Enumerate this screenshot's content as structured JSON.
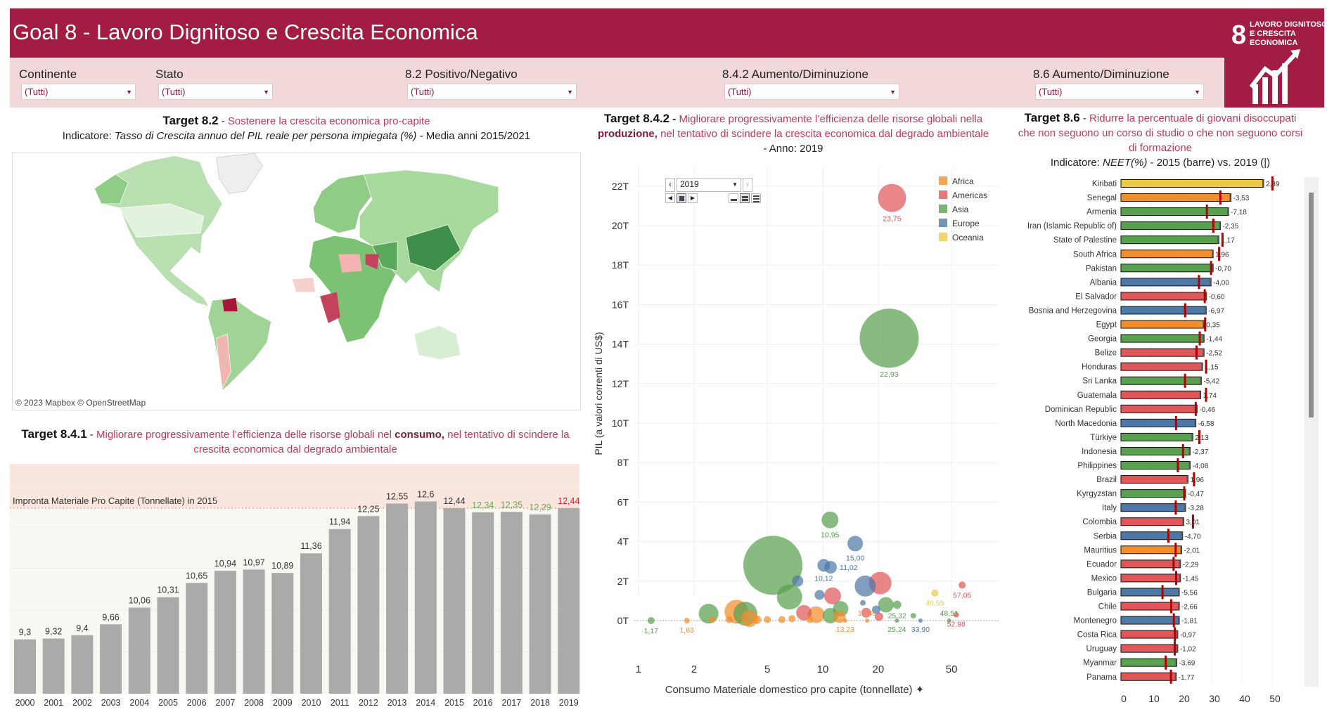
{
  "header": {
    "title": "Goal 8 - Lavoro Dignitoso e Crescita Economica",
    "logo": {
      "number": "8",
      "text": [
        "LAVORO DIGNITOSO",
        "E CRESCITA",
        "ECONOMICA"
      ]
    }
  },
  "filters": [
    {
      "label": "Continente",
      "value": "(Tutti)"
    },
    {
      "label": "Stato",
      "value": "(Tutti)"
    },
    {
      "label": "8.2 Positivo/Negativo",
      "value": "(Tutti)"
    },
    {
      "label": "8.4.2 Aumento/Diminuzione",
      "value": "(Tutti)"
    },
    {
      "label": "8.6 Aumento/Diminuzione",
      "value": "(Tutti)"
    }
  ],
  "colors": {
    "header": "#a21c44",
    "filter_band": "#f3d8da",
    "Africa": "#f28e2b",
    "Americas": "#e15759",
    "Asia": "#59a14f",
    "Europe": "#4e79a7",
    "Oceania": "#edc948",
    "marker": "#b00000",
    "bar_gray": "#aaaaaa"
  },
  "target82": {
    "key": "Target 8.2",
    "desc": "Sostenere la crescita economica pro-capite",
    "ind_label": "Indicatore:",
    "ind_name": "Tasso di Crescita annuo del PIL reale per persona impiegata (%)",
    "ind_suffix": "- Media anni 2015/2021",
    "attribution": "© 2023 Mapbox © OpenStreetMap"
  },
  "target841": {
    "key": "Target 8.4.1",
    "desc1": "Migliorare progressivamente l’efficienza delle risorse globali nel ",
    "bold": "consumo,",
    "desc2": " nel tentativo di scindere la crescita economica dal degrado ambientale"
  },
  "target842": {
    "key": "Target 8.4.2",
    "desc1": "Migliorare progressivamente l’efficienza delle risorse globali nella ",
    "bold": "produzione,",
    "desc2": " nel tentativo di scindere la crescita economica dal degrado ambientale",
    "suffix": " - Anno: 2019",
    "player_value": "2019"
  },
  "target86": {
    "key": "Target 8.6",
    "desc": "Ridurre la percentuale di giovani disoccupati che non seguono un corso di studio o che non seguono corsi di formazione",
    "ind_label": "Indicatore:",
    "ind_name": "NEET(%)",
    "ind_suffix": "- 2015 (barre) vs. 2019 (|)"
  },
  "chart_data": [
    {
      "type": "bar",
      "title": "",
      "ref_label": "Impronta Materiale Pro Capite (Tonnellate) in 2015",
      "ref_value": 12.44,
      "ylim": [
        8,
        13.5
      ],
      "categories": [
        "2000",
        "2001",
        "2002",
        "2003",
        "2004",
        "2005",
        "2006",
        "2007",
        "2008",
        "2009",
        "2010",
        "2011",
        "2012",
        "2013",
        "2014",
        "2015",
        "2016",
        "2017",
        "2018",
        "2019"
      ],
      "values": [
        9.3,
        9.32,
        9.4,
        9.66,
        10.06,
        10.31,
        10.65,
        10.94,
        10.97,
        10.89,
        11.36,
        11.94,
        12.25,
        12.55,
        12.6,
        12.44,
        12.34,
        12.35,
        12.29,
        12.44
      ],
      "labels": [
        "9,3",
        "9,32",
        "9,4",
        "9,66",
        "10,06",
        "10,31",
        "10,65",
        "10,94",
        "10,97",
        "10,89",
        "11,36",
        "11,94",
        "12,25",
        "12,55",
        "12,6",
        "12,44",
        "12,34",
        "12,35",
        "12,29",
        "12,44"
      ],
      "label_colors": [
        "#333",
        "#333",
        "#333",
        "#333",
        "#333",
        "#333",
        "#333",
        "#333",
        "#333",
        "#333",
        "#333",
        "#333",
        "#333",
        "#333",
        "#333",
        "#333",
        "#6aa84f",
        "#6aa84f",
        "#6aa84f",
        "#d62728"
      ]
    },
    {
      "type": "scatter",
      "xlabel": "Consumo Materiale domestico pro capite (tonnellate)",
      "ylabel": "PIL (a valori correnti di US$)",
      "xscale": "log",
      "xlim": [
        1,
        70
      ],
      "ylim": [
        -2.5,
        23.5
      ],
      "xticks": [
        "1",
        "2",
        "5",
        "10",
        "20",
        "50"
      ],
      "xtick_values": [
        1,
        2,
        5,
        10,
        20,
        50
      ],
      "yticks": [
        "0T",
        "2T",
        "4T",
        "6T",
        "8T",
        "10T",
        "12T",
        "14T",
        "16T",
        "18T",
        "20T",
        "22T"
      ],
      "ytick_values": [
        0,
        2,
        4,
        6,
        8,
        10,
        12,
        14,
        16,
        18,
        20,
        22
      ],
      "legend": [
        "Africa",
        "Americas",
        "Asia",
        "Europe",
        "Oceania"
      ],
      "legend_position": "top-right",
      "points": [
        {
          "x": 23.75,
          "y": 21.4,
          "size": 20,
          "c": "Americas",
          "label": "23,75"
        },
        {
          "x": 22.93,
          "y": 14.3,
          "size": 42,
          "c": "Asia",
          "label": "22,93"
        },
        {
          "x": 5.36,
          "y": 2.8,
          "size": 42,
          "c": "Asia"
        },
        {
          "x": 10.95,
          "y": 5.1,
          "size": 12,
          "c": "Asia",
          "label": "10,95"
        },
        {
          "x": 15.0,
          "y": 3.9,
          "size": 11,
          "c": "Europe",
          "label": "15,00"
        },
        {
          "x": 10.12,
          "y": 2.8,
          "size": 9,
          "c": "Europe",
          "label": "10,12"
        },
        {
          "x": 11.02,
          "y": 2.7,
          "size": 9,
          "c": "Europe",
          "label": "11,02"
        },
        {
          "x": 6.6,
          "y": 1.2,
          "size": 18,
          "c": "Asia"
        },
        {
          "x": 7.3,
          "y": 2.0,
          "size": 8,
          "c": "Europe"
        },
        {
          "x": 17.0,
          "y": 1.75,
          "size": 15,
          "c": "Europe"
        },
        {
          "x": 20.5,
          "y": 1.9,
          "size": 16,
          "c": "Americas"
        },
        {
          "x": 11.3,
          "y": 1.25,
          "size": 12,
          "c": "Americas"
        },
        {
          "x": 9.6,
          "y": 1.3,
          "size": 7,
          "c": "Europe"
        },
        {
          "x": 2.4,
          "y": 0.35,
          "size": 14,
          "c": "Asia"
        },
        {
          "x": 3.4,
          "y": 0.45,
          "size": 17,
          "c": "Africa"
        },
        {
          "x": 3.8,
          "y": 0.35,
          "size": 17,
          "c": "Asia"
        },
        {
          "x": 4.0,
          "y": 0.1,
          "size": 12,
          "c": "Africa"
        },
        {
          "x": 7.9,
          "y": 0.4,
          "size": 11,
          "c": "Americas"
        },
        {
          "x": 9.2,
          "y": 0.3,
          "size": 12,
          "c": "Africa"
        },
        {
          "x": 12.5,
          "y": 0.6,
          "size": 11,
          "c": "Asia"
        },
        {
          "x": 12.3,
          "y": 0.2,
          "size": 9,
          "c": "Africa"
        },
        {
          "x": 11.0,
          "y": 0.25,
          "size": 11,
          "c": "Asia"
        },
        {
          "x": 22.0,
          "y": 0.8,
          "size": 11,
          "c": "Asia"
        },
        {
          "x": 25.32,
          "y": 0.8,
          "size": 6,
          "c": "Asia",
          "label": "25,32"
        },
        {
          "x": 17.2,
          "y": 0.4,
          "size": 7,
          "c": "Americas"
        },
        {
          "x": 19.5,
          "y": 0.55,
          "size": 6,
          "c": "Europe"
        },
        {
          "x": 20.2,
          "y": 0.2,
          "size": 6,
          "c": "Americas"
        },
        {
          "x": 16.5,
          "y": 0.9,
          "size": 4,
          "c": "Europe"
        },
        {
          "x": 40.55,
          "y": 1.4,
          "size": 5,
          "c": "Oceania",
          "label": "40,55"
        },
        {
          "x": 57.05,
          "y": 1.8,
          "size": 5,
          "c": "Americas",
          "label": "57,05"
        },
        {
          "x": 52.98,
          "y": 0.3,
          "size": 4,
          "c": "Americas",
          "label": "52,98"
        },
        {
          "x": 1.17,
          "y": 0.0,
          "size": 5,
          "c": "Asia",
          "label": "1,17"
        },
        {
          "x": 1.83,
          "y": 0.0,
          "size": 4,
          "c": "Africa",
          "label": "1,83"
        },
        {
          "x": 2.5,
          "y": 0.05,
          "size": 5,
          "c": "Africa"
        },
        {
          "x": 3.1,
          "y": 0.05,
          "size": 5,
          "c": "Africa"
        },
        {
          "x": 4.4,
          "y": 0.05,
          "size": 6,
          "c": "Africa"
        },
        {
          "x": 5.0,
          "y": 0.05,
          "size": 5,
          "c": "Africa"
        },
        {
          "x": 6.0,
          "y": 0.05,
          "size": 5,
          "c": "Africa"
        },
        {
          "x": 6.8,
          "y": 0.1,
          "size": 5,
          "c": "Africa"
        },
        {
          "x": 8.5,
          "y": 0.05,
          "size": 5,
          "c": "Africa"
        },
        {
          "x": 13.23,
          "y": 0.0,
          "size": 3,
          "c": "Africa",
          "label": "13,23"
        },
        {
          "x": 17.4,
          "y": 0.0,
          "size": 3,
          "c": "Africa",
          "label": "17,40"
        },
        {
          "x": 25.24,
          "y": 0.0,
          "size": 3,
          "c": "Asia",
          "label": "25,24"
        },
        {
          "x": 33.9,
          "y": 0.0,
          "size": 3,
          "c": "Europe",
          "label": "33,90"
        },
        {
          "x": 31.0,
          "y": 0.25,
          "size": 4,
          "c": "Asia"
        },
        {
          "x": 48.51,
          "y": 0.0,
          "size": 3,
          "c": "Asia",
          "label": "48,51"
        }
      ]
    },
    {
      "type": "bar",
      "orientation": "horizontal",
      "xticks": [
        "0",
        "10",
        "20",
        "30",
        "40",
        "50"
      ],
      "xtick_values": [
        0,
        10,
        20,
        30,
        40,
        50
      ],
      "xlim": [
        0,
        58
      ],
      "series_note": "bars = 2015, marker = 2019",
      "rows": [
        {
          "country": "Kiribati",
          "c": "Oceania",
          "v2015": 47.2,
          "change": "2,89"
        },
        {
          "country": "Senegal",
          "c": "Africa",
          "v2015": 36.4,
          "change": "-3,53"
        },
        {
          "country": "Armenia",
          "c": "Asia",
          "v2015": 35.6,
          "change": "-7,18"
        },
        {
          "country": "Iran (Islamic Republic of)",
          "c": "Asia",
          "v2015": 32.9,
          "change": "-2,35"
        },
        {
          "country": "State of Palestine",
          "c": "Asia",
          "v2015": 32.4,
          "change": "1,17"
        },
        {
          "country": "South Africa",
          "c": "Africa",
          "v2015": 30.5,
          "change": "1,96"
        },
        {
          "country": "Pakistan",
          "c": "Asia",
          "v2015": 30.5,
          "change": "-0,70"
        },
        {
          "country": "Albania",
          "c": "Europe",
          "v2015": 29.8,
          "change": "-4,00"
        },
        {
          "country": "El Salvador",
          "c": "Americas",
          "v2015": 28.3,
          "change": "-0,60"
        },
        {
          "country": "Bosnia and Herzegovina",
          "c": "Europe",
          "v2015": 28.2,
          "change": "-6,97"
        },
        {
          "country": "Egypt",
          "c": "Africa",
          "v2015": 27.5,
          "change": "0,35"
        },
        {
          "country": "Georgia",
          "c": "Asia",
          "v2015": 27.5,
          "change": "-1,44"
        },
        {
          "country": "Belize",
          "c": "Americas",
          "v2015": 27.5,
          "change": "-2,52"
        },
        {
          "country": "Honduras",
          "c": "Americas",
          "v2015": 27.0,
          "change": "1,15"
        },
        {
          "country": "Sri Lanka",
          "c": "Asia",
          "v2015": 26.6,
          "change": "-5,42"
        },
        {
          "country": "Guatemala",
          "c": "Americas",
          "v2015": 26.4,
          "change": "1,74"
        },
        {
          "country": "Dominican Republic",
          "c": "Americas",
          "v2015": 25.2,
          "change": "-0,46"
        },
        {
          "country": "North Macedonia",
          "c": "Europe",
          "v2015": 24.8,
          "change": "-6,58"
        },
        {
          "country": "Türkiye",
          "c": "Asia",
          "v2015": 23.8,
          "change": "2,13"
        },
        {
          "country": "Indonesia",
          "c": "Asia",
          "v2015": 22.9,
          "change": "-2,37"
        },
        {
          "country": "Philippines",
          "c": "Asia",
          "v2015": 22.9,
          "change": "-4,08"
        },
        {
          "country": "Brazil",
          "c": "Americas",
          "v2015": 22.2,
          "change": "1,96"
        },
        {
          "country": "Kyrgyzstan",
          "c": "Asia",
          "v2015": 21.4,
          "change": "-0,47"
        },
        {
          "country": "Italy",
          "c": "Europe",
          "v2015": 21.4,
          "change": "-3,28"
        },
        {
          "country": "Colombia",
          "c": "Americas",
          "v2015": 20.8,
          "change": "3,01"
        },
        {
          "country": "Serbia",
          "c": "Europe",
          "v2015": 20.4,
          "change": "-4,70"
        },
        {
          "country": "Mauritius",
          "c": "Africa",
          "v2015": 20.1,
          "change": "-2,01"
        },
        {
          "country": "Ecuador",
          "c": "Americas",
          "v2015": 19.7,
          "change": "-2,29"
        },
        {
          "country": "Mexico",
          "c": "Americas",
          "v2015": 19.7,
          "change": "-1,45"
        },
        {
          "country": "Bulgaria",
          "c": "Europe",
          "v2015": 19.3,
          "change": "-5,56"
        },
        {
          "country": "Chile",
          "c": "Americas",
          "v2015": 19.3,
          "change": "-2,66"
        },
        {
          "country": "Montenegro",
          "c": "Europe",
          "v2015": 19.3,
          "change": "-1,81"
        },
        {
          "country": "Costa Rica",
          "c": "Americas",
          "v2015": 18.8,
          "change": "-0,97"
        },
        {
          "country": "Uruguay",
          "c": "Americas",
          "v2015": 18.8,
          "change": "-1,02"
        },
        {
          "country": "Myanmar",
          "c": "Asia",
          "v2015": 18.5,
          "change": "-3,69"
        },
        {
          "country": "Panama",
          "c": "Americas",
          "v2015": 18.3,
          "change": "-1,77"
        }
      ]
    }
  ]
}
